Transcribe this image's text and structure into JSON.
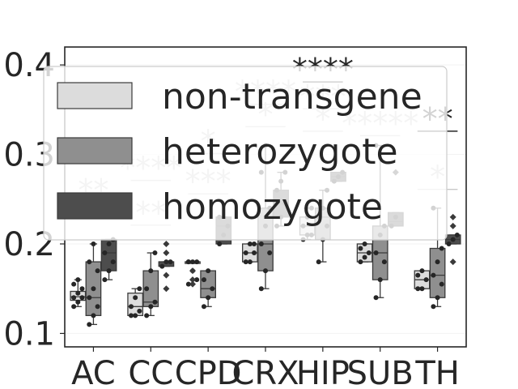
{
  "chart_data": {
    "type": "box",
    "categories": [
      "AC",
      "CC",
      "CPD",
      "CRX",
      "HIP",
      "SUB",
      "TH"
    ],
    "ylim": [
      0.085,
      0.42
    ],
    "yticks": [
      0.1,
      0.2,
      0.3,
      0.4
    ],
    "ytick_labels": [
      "0.1",
      "0.2",
      "0.3",
      "0.4"
    ],
    "legend": {
      "placement": "upper-center",
      "entries": [
        "non-transgene",
        "heterozygote",
        "homozygote"
      ]
    },
    "colors": {
      "non-transgene": "#dcdcdc",
      "heterozygote": "#8f8f8f",
      "homozygote": "#4d4d4d",
      "edge": "#3a3a3a",
      "axes": "#262626",
      "sig_primary": "#262626",
      "sig_secondary": "#c8c8c8"
    },
    "series": [
      {
        "name": "non-transgene",
        "boxes": [
          {
            "category": "AC",
            "q1": 0.137,
            "median": 0.141,
            "q3": 0.147,
            "whisker_low": 0.13,
            "whisker_high": 0.16,
            "points": [
              0.13,
              0.135,
              0.14,
              0.14,
              0.145,
              0.15,
              0.155,
              0.16
            ]
          },
          {
            "category": "CC",
            "q1": 0.12,
            "median": 0.13,
            "q3": 0.145,
            "whisker_low": 0.12,
            "whisker_high": 0.15,
            "points": [
              0.12,
              0.12,
              0.125,
              0.13,
              0.14,
              0.15
            ]
          },
          {
            "category": "CPD",
            "q1": 0.18,
            "median": 0.18,
            "q3": 0.18,
            "whisker_low": 0.18,
            "whisker_high": 0.18,
            "points": [
              0.18,
              0.18,
              0.18,
              0.18,
              0.17,
              0.16,
              0.155
            ],
            "fliers": [
              0.17,
              0.16,
              0.155
            ]
          },
          {
            "category": "CRX",
            "q1": 0.18,
            "median": 0.19,
            "q3": 0.2,
            "whisker_low": 0.18,
            "whisker_high": 0.2,
            "points": [
              0.18,
              0.18,
              0.19,
              0.19,
              0.2,
              0.2
            ]
          },
          {
            "category": "HIP",
            "q1": 0.21,
            "median": 0.22,
            "q3": 0.23,
            "whisker_low": 0.205,
            "whisker_high": 0.24,
            "points": [
              0.205,
              0.21,
              0.21,
              0.22,
              0.23,
              0.24
            ]
          },
          {
            "category": "SUB",
            "q1": 0.18,
            "median": 0.19,
            "q3": 0.2,
            "whisker_low": 0.18,
            "whisker_high": 0.2,
            "points": [
              0.18,
              0.185,
              0.19,
              0.195,
              0.2
            ]
          },
          {
            "category": "TH",
            "q1": 0.15,
            "median": 0.16,
            "q3": 0.17,
            "whisker_low": 0.15,
            "whisker_high": 0.17,
            "points": [
              0.15,
              0.15,
              0.16,
              0.165,
              0.17
            ]
          }
        ]
      },
      {
        "name": "heterozygote",
        "boxes": [
          {
            "category": "AC",
            "q1": 0.12,
            "median": 0.14,
            "q3": 0.18,
            "whisker_low": 0.11,
            "whisker_high": 0.2,
            "points": [
              0.11,
              0.12,
              0.13,
              0.14,
              0.15,
              0.17,
              0.18,
              0.2
            ]
          },
          {
            "category": "CC",
            "q1": 0.13,
            "median": 0.135,
            "q3": 0.17,
            "whisker_low": 0.12,
            "whisker_high": 0.19,
            "points": [
              0.12,
              0.13,
              0.135,
              0.15,
              0.17,
              0.19
            ]
          },
          {
            "category": "CPD",
            "q1": 0.14,
            "median": 0.15,
            "q3": 0.17,
            "whisker_low": 0.13,
            "whisker_high": 0.17,
            "points": [
              0.13,
              0.14,
              0.15,
              0.16,
              0.17
            ]
          },
          {
            "category": "CRX",
            "q1": 0.17,
            "median": 0.2,
            "q3": 0.24,
            "whisker_low": 0.15,
            "whisker_high": 0.31,
            "points": [
              0.15,
              0.17,
              0.19,
              0.2,
              0.22,
              0.24,
              0.28,
              0.31
            ]
          },
          {
            "category": "HIP",
            "q1": 0.205,
            "median": 0.23,
            "q3": 0.24,
            "whisker_low": 0.18,
            "whisker_high": 0.26,
            "points": [
              0.18,
              0.205,
              0.22,
              0.23,
              0.24,
              0.26
            ]
          },
          {
            "category": "SUB",
            "q1": 0.16,
            "median": 0.19,
            "q3": 0.22,
            "whisker_low": 0.14,
            "whisker_high": 0.31,
            "points": [
              0.14,
              0.16,
              0.18,
              0.19,
              0.21,
              0.22,
              0.31
            ]
          },
          {
            "category": "TH",
            "q1": 0.14,
            "median": 0.165,
            "q3": 0.195,
            "whisker_low": 0.13,
            "whisker_high": 0.24,
            "points": [
              0.13,
              0.14,
              0.155,
              0.165,
              0.18,
              0.195,
              0.24
            ]
          }
        ]
      },
      {
        "name": "homozygote",
        "boxes": [
          {
            "category": "AC",
            "q1": 0.17,
            "median": 0.19,
            "q3": 0.205,
            "whisker_low": 0.16,
            "whisker_high": 0.205,
            "points": [
              0.16,
              0.17,
              0.18,
              0.19,
              0.2,
              0.205
            ]
          },
          {
            "category": "CC",
            "q1": 0.175,
            "median": 0.18,
            "q3": 0.18,
            "whisker_low": 0.175,
            "whisker_high": 0.18,
            "points": [
              0.175,
              0.18,
              0.18
            ],
            "fliers": [
              0.2,
              0.19,
              0.165,
              0.15
            ]
          },
          {
            "category": "CPD",
            "q1": 0.2,
            "median": 0.22,
            "q3": 0.23,
            "whisker_low": 0.2,
            "whisker_high": 0.23,
            "points": [
              0.2,
              0.21,
              0.22,
              0.23
            ]
          },
          {
            "category": "CRX",
            "q1": 0.23,
            "median": 0.245,
            "q3": 0.26,
            "whisker_low": 0.22,
            "whisker_high": 0.28,
            "points": [
              0.22,
              0.23,
              0.245,
              0.26,
              0.27,
              0.28
            ]
          },
          {
            "category": "HIP",
            "q1": 0.27,
            "median": 0.275,
            "q3": 0.28,
            "whisker_low": 0.27,
            "whisker_high": 0.28,
            "points": [
              0.27,
              0.275,
              0.28
            ]
          },
          {
            "category": "SUB",
            "q1": 0.22,
            "median": 0.225,
            "q3": 0.235,
            "whisker_low": 0.22,
            "whisker_high": 0.235,
            "points": [
              0.22,
              0.23
            ],
            "fliers": [
              0.28
            ]
          },
          {
            "category": "TH",
            "q1": 0.2,
            "median": 0.205,
            "q3": 0.21,
            "whisker_low": 0.2,
            "whisker_high": 0.21,
            "points": [
              0.2,
              0.205,
              0.21
            ],
            "fliers": [
              0.23,
              0.22,
              0.18
            ]
          }
        ]
      }
    ],
    "significance": [
      {
        "label": "****",
        "tone": "primary",
        "category": "HIP",
        "y": 0.39
      },
      {
        "label": "****",
        "tone": "secondary",
        "category": "CRX",
        "y": 0.365
      },
      {
        "label": "***",
        "tone": "secondary",
        "category": "HIP",
        "y": 0.36
      },
      {
        "label": "*",
        "tone": "secondary",
        "category": "CRX",
        "y": 0.34
      },
      {
        "label": "*****",
        "tone": "secondary",
        "category": "SUB",
        "y": 0.33
      },
      {
        "label": "**",
        "tone": "primary",
        "category": "TH",
        "y": 0.335
      },
      {
        "label": "*",
        "tone": "secondary",
        "category": "CPD",
        "y": 0.31
      },
      {
        "label": "****",
        "tone": "secondary",
        "category": "CC",
        "y": 0.28
      },
      {
        "label": "***",
        "tone": "secondary",
        "category": "CPD",
        "y": 0.265
      },
      {
        "label": "**",
        "tone": "secondary",
        "category": "AC",
        "y": 0.255
      },
      {
        "label": "**",
        "tone": "secondary",
        "category": "CC",
        "y": 0.23
      },
      {
        "label": "*",
        "tone": "secondary",
        "category": "TH",
        "y": 0.27
      },
      {
        "label": "*",
        "tone": "secondary",
        "category": "HIP",
        "y": 0.335
      }
    ]
  }
}
